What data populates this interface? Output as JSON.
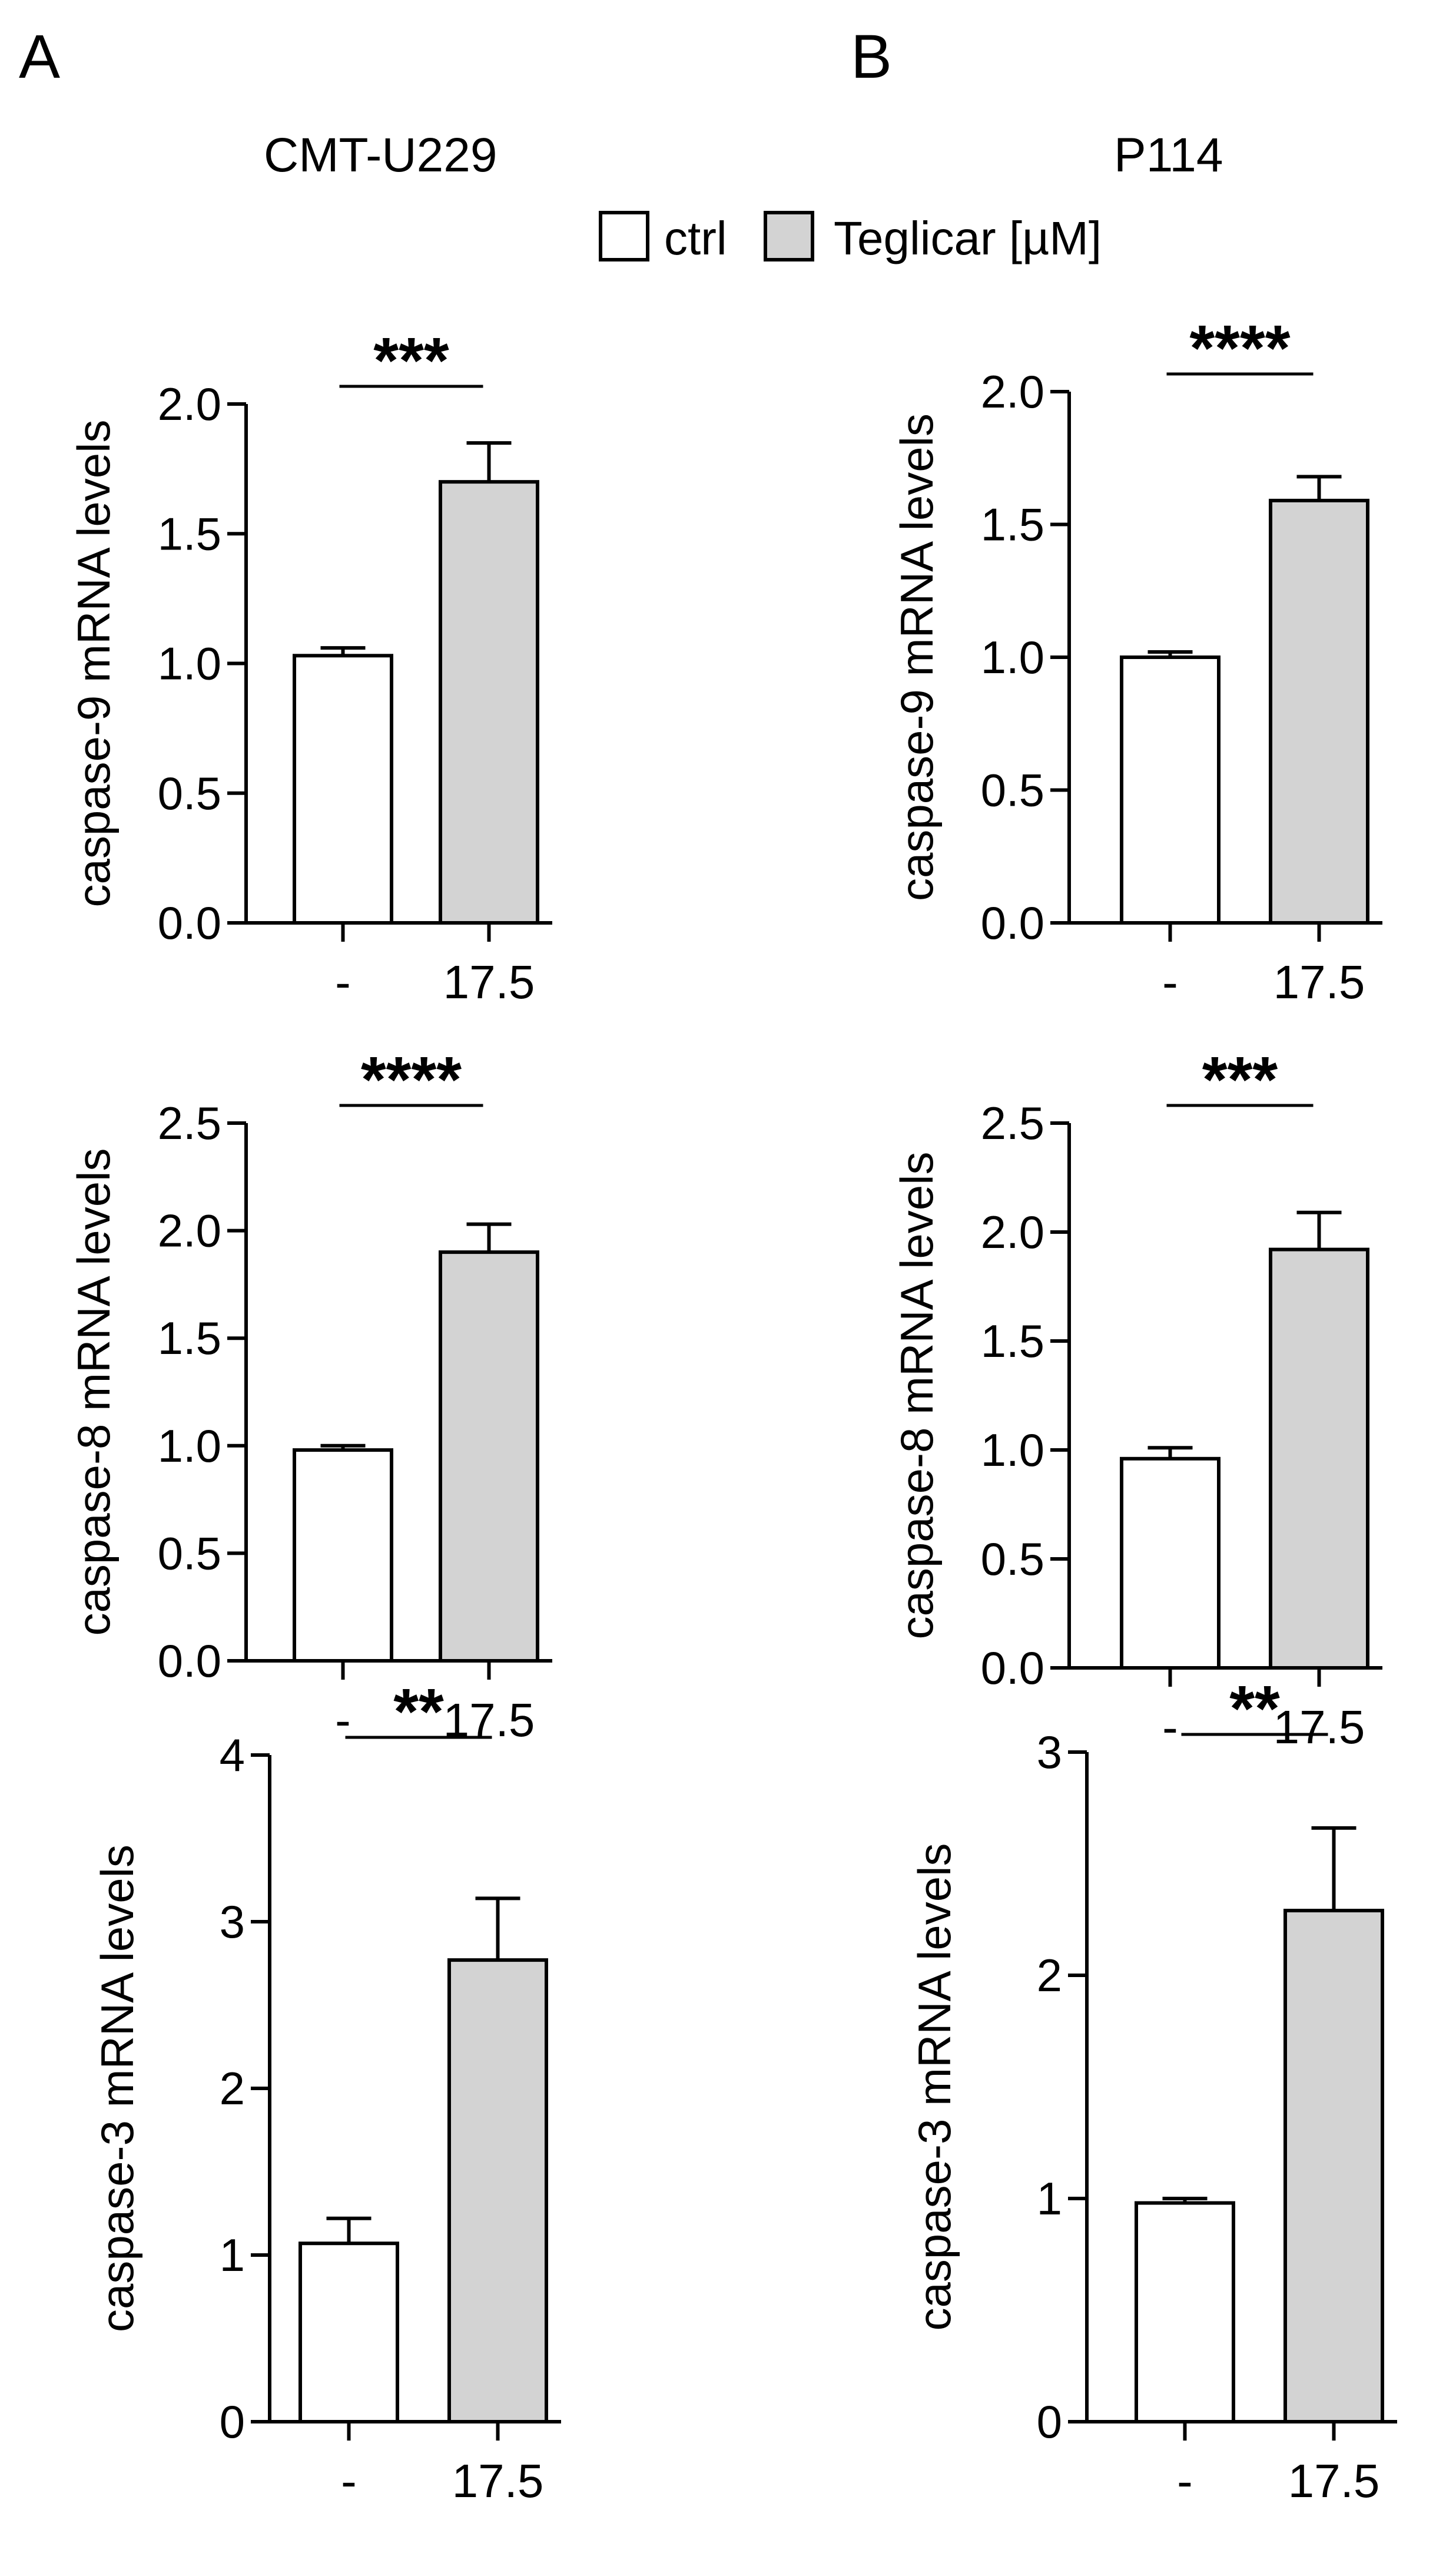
{
  "panels": [
    {
      "letter": "A",
      "title": "CMT-U229"
    },
    {
      "letter": "B",
      "title": "P114"
    }
  ],
  "legend": {
    "items": [
      {
        "label": "ctrl",
        "color": "#ffffff"
      },
      {
        "label": "Teglicar [µM]",
        "color": "#d3d3d3"
      }
    ]
  },
  "colors": {
    "ctrl": "#ffffff",
    "treated": "#d3d3d3",
    "axis": "#000000"
  },
  "chart_data": [
    {
      "type": "bar",
      "panel": "A",
      "title": "CMT-U229",
      "ylabel": "caspase-9 mRNA levels",
      "categories": [
        "-",
        "17.5"
      ],
      "values": [
        1.03,
        1.7
      ],
      "errors": [
        0.03,
        0.15
      ],
      "ylim": [
        0,
        2.0
      ],
      "yticks": [
        0.0,
        0.5,
        1.0,
        1.5,
        2.0
      ],
      "tick_labels": [
        "0.0",
        "0.5",
        "1.0",
        "1.5",
        "2.0"
      ],
      "significance": "***"
    },
    {
      "type": "bar",
      "panel": "A",
      "title": "CMT-U229",
      "ylabel": "caspase-8 mRNA levels",
      "categories": [
        "-",
        "17.5"
      ],
      "values": [
        0.98,
        1.9
      ],
      "errors": [
        0.02,
        0.13
      ],
      "ylim": [
        0,
        2.5
      ],
      "yticks": [
        0.0,
        0.5,
        1.0,
        1.5,
        2.0,
        2.5
      ],
      "tick_labels": [
        "0.0",
        "0.5",
        "1.0",
        "1.5",
        "2.0",
        "2.5"
      ],
      "significance": "****"
    },
    {
      "type": "bar",
      "panel": "A",
      "title": "CMT-U229",
      "ylabel": "caspase-3 mRNA levels",
      "categories": [
        "-",
        "17.5"
      ],
      "values": [
        1.07,
        2.77
      ],
      "errors": [
        0.15,
        0.37
      ],
      "ylim": [
        0,
        4
      ],
      "yticks": [
        0,
        1,
        2,
        3,
        4
      ],
      "tick_labels": [
        "0",
        "1",
        "2",
        "3",
        "4"
      ],
      "significance": "**"
    },
    {
      "type": "bar",
      "panel": "B",
      "title": "P114",
      "ylabel": "caspase-9 mRNA levels",
      "categories": [
        "-",
        "17.5"
      ],
      "values": [
        1.0,
        1.59
      ],
      "errors": [
        0.02,
        0.09
      ],
      "ylim": [
        0,
        2.0
      ],
      "yticks": [
        0.0,
        0.5,
        1.0,
        1.5,
        2.0
      ],
      "tick_labels": [
        "0.0",
        "0.5",
        "1.0",
        "1.5",
        "2.0"
      ],
      "significance": "****"
    },
    {
      "type": "bar",
      "panel": "B",
      "title": "P114",
      "ylabel": "caspase-8 mRNA levels",
      "categories": [
        "-",
        "17.5"
      ],
      "values": [
        0.96,
        1.92
      ],
      "errors": [
        0.05,
        0.17
      ],
      "ylim": [
        0,
        2.5
      ],
      "yticks": [
        0.0,
        0.5,
        1.0,
        1.5,
        2.0,
        2.5
      ],
      "tick_labels": [
        "0.0",
        "0.5",
        "1.0",
        "1.5",
        "2.0",
        "2.5"
      ],
      "significance": "***"
    },
    {
      "type": "bar",
      "panel": "B",
      "title": "P114",
      "ylabel": "caspase-3 mRNA levels",
      "categories": [
        "-",
        "17.5"
      ],
      "values": [
        0.98,
        2.29
      ],
      "errors": [
        0.02,
        0.37
      ],
      "ylim": [
        0,
        3
      ],
      "yticks": [
        0,
        1,
        2,
        3
      ],
      "tick_labels": [
        "0",
        "1",
        "2",
        "3"
      ],
      "significance": "**"
    }
  ]
}
